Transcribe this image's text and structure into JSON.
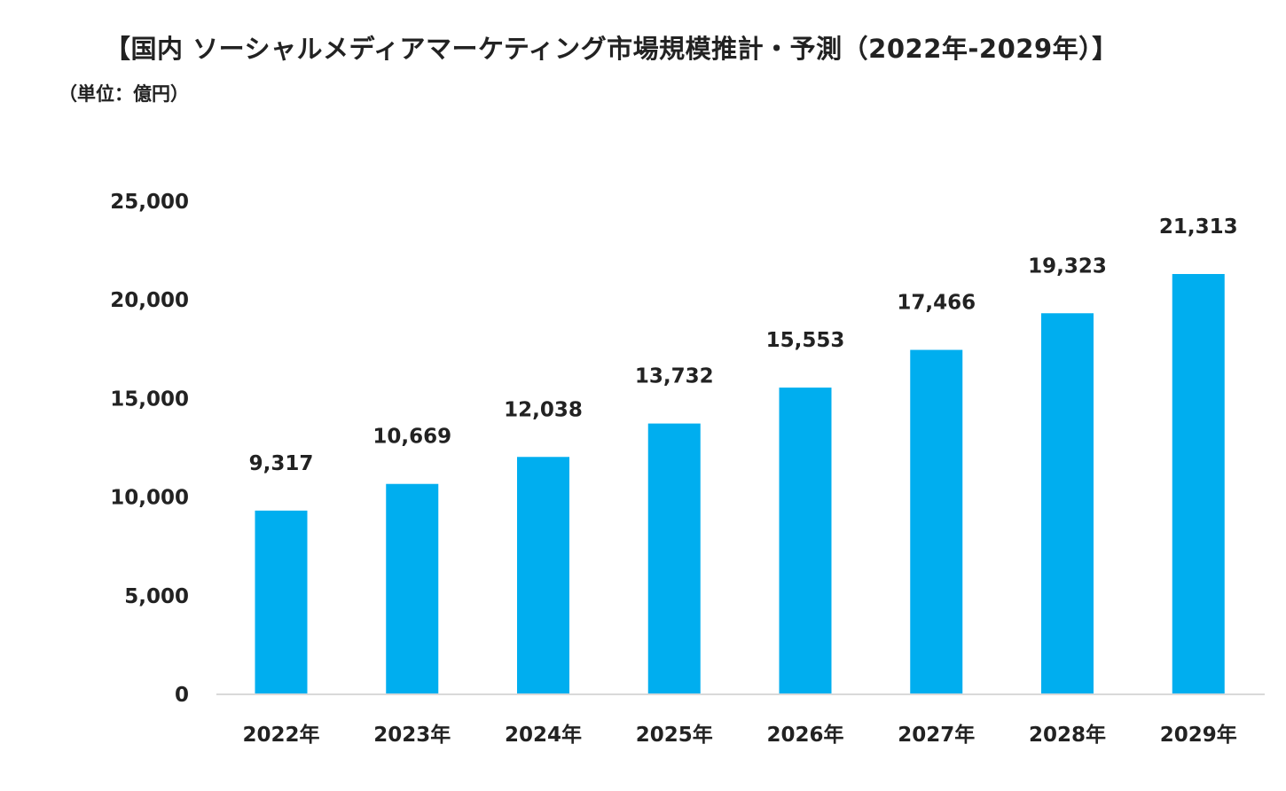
{
  "chart_data": {
    "type": "bar",
    "title": "【国内 ソーシャルメディアマーケティング市場規模推計・予測（2022年-2029年）】",
    "unit_label": "（単位：億円）",
    "categories": [
      "2022年",
      "2023年",
      "2024年",
      "2025年",
      "2026年",
      "2027年",
      "2028年",
      "2029年"
    ],
    "values": [
      9317,
      10669,
      12038,
      13732,
      15553,
      17466,
      19323,
      21313
    ],
    "value_labels": [
      "9,317",
      "10,669",
      "12,038",
      "13,732",
      "15,553",
      "17,466",
      "19,323",
      "21,313"
    ],
    "y_ticks": [
      0,
      5000,
      10000,
      15000,
      20000,
      25000
    ],
    "y_tick_labels": [
      "0",
      "5,000",
      "10,000",
      "15,000",
      "20,000",
      "25,000"
    ],
    "ylim": [
      0,
      25000
    ],
    "xlabel": "",
    "ylabel": "",
    "grid": false,
    "bar_color": "#00AEEF",
    "axis_color": "#D9D9D9"
  }
}
